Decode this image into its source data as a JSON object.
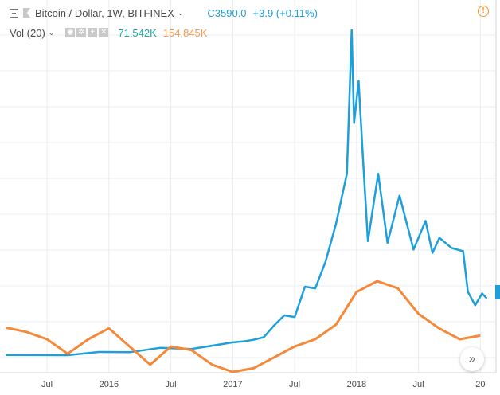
{
  "header": {
    "symbol_title": "Bitcoin / Dollar, 1W, BITFINEX",
    "close_value": "C3590.0",
    "change_value": "+3.9 (+0.11%)",
    "chevron": "⌄",
    "alert_icon": "alert-icon"
  },
  "volume_legend": {
    "label": "Vol (20)",
    "value_1": "71.542K",
    "value_2": "154.845K",
    "controls": [
      "eye-icon",
      "settings-icon",
      "add-icon",
      "close-icon"
    ]
  },
  "nav_button_icon": "double-chevron-right-icon",
  "colors": {
    "price_line": "#1e9fd9",
    "volume_ma_line": "#f5893a",
    "grid": "#e9ecef",
    "axis_text": "#4a4a4a"
  },
  "chart_data": {
    "type": "line",
    "x_axis_ticks": [
      "Jul",
      "2016",
      "Jul",
      "2017",
      "Jul",
      "2018",
      "Jul",
      "20"
    ],
    "y_axis_ticks": [],
    "grid": "horizontal and vertical",
    "series": [
      {
        "name": "",
        "unit": "USD",
        "points": [
          [
            "2015-03",
            250
          ],
          [
            "2015-06",
            245
          ],
          [
            "2015-09",
            240
          ],
          [
            "2015-12",
            430
          ],
          [
            "2016-03",
            415
          ],
          [
            "2016-06",
            680
          ],
          [
            "2016-09",
            610
          ],
          [
            "2016-12",
            900
          ],
          [
            "2017-01",
            1000
          ],
          [
            "2017-02",
            1050
          ],
          [
            "2017-03",
            1150
          ],
          [
            "2017-04",
            1300
          ],
          [
            "2017-05",
            2000
          ],
          [
            "2017-06",
            2600
          ],
          [
            "2017-07",
            2500
          ],
          [
            "2017-08",
            4300
          ],
          [
            "2017-09",
            4200
          ],
          [
            "2017-10",
            5800
          ],
          [
            "2017-11",
            8000
          ],
          [
            "2017-12-03",
            11000
          ],
          [
            "2017-12-17",
            19500
          ],
          [
            "2017-12-24",
            14000
          ],
          [
            "2018-01-07",
            16500
          ],
          [
            "2018-01-21",
            11500
          ],
          [
            "2018-02-04",
            7000
          ],
          [
            "2018-03-04",
            11000
          ],
          [
            "2018-04-01",
            6900
          ],
          [
            "2018-05-06",
            9700
          ],
          [
            "2018-06-17",
            6500
          ],
          [
            "2018-07-22",
            8200
          ],
          [
            "2018-08-12",
            6300
          ],
          [
            "2018-09-02",
            7200
          ],
          [
            "2018-10-07",
            6600
          ],
          [
            "2018-11-11",
            6400
          ],
          [
            "2018-11-25",
            4000
          ],
          [
            "2018-12-16",
            3200
          ],
          [
            "2019-01-06",
            3900
          ],
          [
            "2019-01-20",
            3600
          ]
        ]
      },
      {
        "name": "",
        "unit": "volume (K)",
        "points": [
          [
            "2015-03",
            96
          ],
          [
            "2015-05",
            90
          ],
          [
            "2015-07",
            80
          ],
          [
            "2015-09",
            60
          ],
          [
            "2015-11",
            80
          ],
          [
            "2016-01",
            95
          ],
          [
            "2016-03",
            70
          ],
          [
            "2016-05",
            45
          ],
          [
            "2016-07",
            70
          ],
          [
            "2016-09",
            65
          ],
          [
            "2016-11",
            45
          ],
          [
            "2017-01",
            35
          ],
          [
            "2017-03",
            40
          ],
          [
            "2017-05",
            55
          ],
          [
            "2017-07",
            70
          ],
          [
            "2017-09",
            80
          ],
          [
            "2017-11",
            100
          ],
          [
            "2018-01",
            145
          ],
          [
            "2018-03",
            160
          ],
          [
            "2018-05",
            150
          ],
          [
            "2018-07",
            115
          ],
          [
            "2018-09",
            95
          ],
          [
            "2018-11",
            80
          ],
          [
            "2019-01",
            85
          ]
        ]
      }
    ]
  }
}
